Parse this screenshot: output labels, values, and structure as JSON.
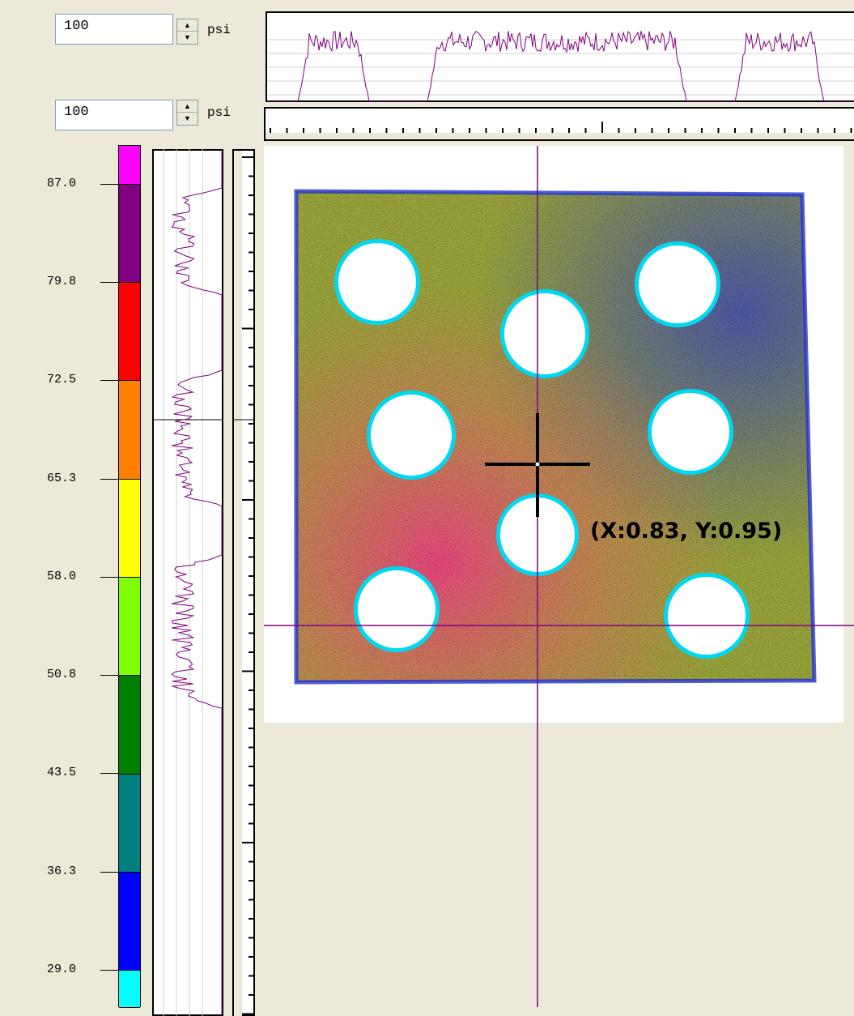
{
  "pressure_inputs": [
    {
      "value": "100",
      "unit": "psi"
    },
    {
      "value": "100",
      "unit": "psi"
    }
  ],
  "color_scale": {
    "labels": [
      "87.0",
      "79.8",
      "72.5",
      "65.3",
      "58.0",
      "50.8",
      "43.5",
      "36.3",
      "29.0"
    ],
    "colors": [
      "#ff00ff",
      "#800080",
      "#ff0000",
      "#ff8000",
      "#ffff00",
      "#80ff00",
      "#008000",
      "#008080",
      "#0000ff",
      "#00ffff"
    ]
  },
  "cursor": {
    "readout": "(X:0.83, Y:0.95)"
  },
  "colors": {
    "profile_line": "#800080",
    "crosshair_line": "#800080",
    "background": "#ece9d8"
  }
}
